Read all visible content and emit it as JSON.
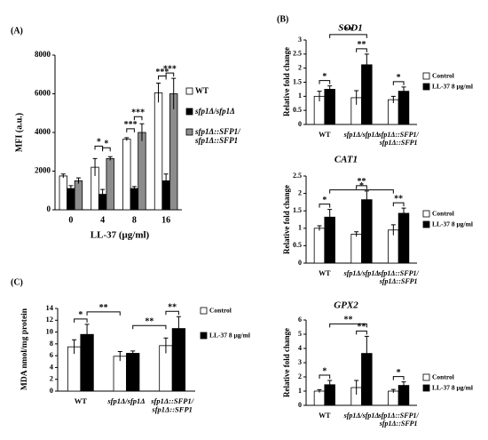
{
  "chart_data": [
    {
      "type": "bar",
      "panel": "(A)",
      "xlabel": "LL-37 (μg/ml)",
      "ylabel": "MFI (a.u.)",
      "categories": [
        "0",
        "4",
        "8",
        "16"
      ],
      "series": [
        {
          "name": "WT",
          "color": "#ffffff",
          "values": [
            1750,
            2200,
            3650,
            6050
          ],
          "errors": [
            100,
            450,
            80,
            500
          ]
        },
        {
          "name": "sfp1Δ/sfp1Δ",
          "color": "#000000",
          "values": [
            1100,
            800,
            1100,
            1500
          ],
          "errors": [
            150,
            250,
            100,
            350
          ]
        },
        {
          "name": "sfp1Δ::SFP1/sfp1Δ::SFP1",
          "color": "#8c8c8c",
          "values": [
            1500,
            2650,
            4000,
            6000
          ],
          "errors": [
            150,
            100,
            450,
            800
          ]
        }
      ],
      "ylim": [
        0,
        8000
      ],
      "yticks": [
        0,
        2000,
        4000,
        6000,
        8000
      ],
      "annotations": [
        "*",
        "*",
        "***",
        "***",
        "***",
        "***"
      ]
    },
    {
      "type": "bar",
      "panel": "(B)",
      "title": "SOD1",
      "ylabel": "Relative fold change",
      "categories": [
        "WT",
        "sfp1Δ/sfp1Δ",
        "sfp1Δ::SFP1/sfp1Δ::SFP1"
      ],
      "series": [
        {
          "name": "Control",
          "color": "#ffffff",
          "values": [
            1.0,
            0.95,
            0.88
          ],
          "errors": [
            0.18,
            0.25,
            0.12
          ]
        },
        {
          "name": "LL-37  8 μg/ml",
          "color": "#000000",
          "values": [
            1.25,
            2.12,
            1.18
          ],
          "errors": [
            0.12,
            0.38,
            0.15
          ]
        }
      ],
      "ylim": [
        0,
        3
      ],
      "yticks": [
        0,
        0.5,
        1,
        1.5,
        2,
        2.5,
        3
      ],
      "annotations": [
        "*",
        "**",
        "**",
        "*"
      ]
    },
    {
      "type": "bar",
      "title": "CAT1",
      "ylabel": "Relative fold change",
      "categories": [
        "WT",
        "sfp1Δ/sfp1Δ",
        "sfp1Δ::SFP1/sfp1Δ::SFP1"
      ],
      "series": [
        {
          "name": "Control",
          "color": "#ffffff",
          "values": [
            1.0,
            0.83,
            0.95
          ],
          "errors": [
            0.07,
            0.07,
            0.15
          ]
        },
        {
          "name": "LL-37  8 μg/ml",
          "color": "#000000",
          "values": [
            1.32,
            1.82,
            1.43
          ],
          "errors": [
            0.22,
            0.25,
            0.15
          ]
        }
      ],
      "ylim": [
        0,
        2.5
      ],
      "yticks": [
        0,
        0.5,
        1,
        1.5,
        2,
        2.5
      ],
      "annotations": [
        "*",
        "*",
        "**",
        "**"
      ]
    },
    {
      "type": "bar",
      "title": "GPX2",
      "ylabel": "Relative fold change",
      "categories": [
        "WT",
        "sfp1Δ/sfp1Δ",
        "sfp1Δ::SFP1/sfp1Δ::SFP1"
      ],
      "series": [
        {
          "name": "Control",
          "color": "#ffffff",
          "values": [
            1.0,
            1.25,
            1.0
          ],
          "errors": [
            0.1,
            0.5,
            0.12
          ]
        },
        {
          "name": "LL-37  8 μg/ml",
          "color": "#000000",
          "values": [
            1.45,
            3.65,
            1.4
          ],
          "errors": [
            0.3,
            1.2,
            0.25
          ]
        }
      ],
      "ylim": [
        0,
        6
      ],
      "yticks": [
        0,
        1,
        2,
        3,
        4,
        5,
        6
      ],
      "annotations": [
        "*",
        "**",
        "**",
        "*"
      ]
    },
    {
      "type": "bar",
      "panel": "(C)",
      "ylabel": "MDA nmol/mg protein",
      "categories": [
        "WT",
        "sfp1Δ/sfp1Δ",
        "sfp1Δ::SFP1/sfp1Δ::SFP1"
      ],
      "series": [
        {
          "name": "Control",
          "color": "#ffffff",
          "values": [
            7.5,
            5.9,
            7.7
          ],
          "errors": [
            1.2,
            0.8,
            1.3
          ]
        },
        {
          "name": "LL-37  8 μg/ml",
          "color": "#000000",
          "values": [
            9.6,
            6.4,
            10.6
          ],
          "errors": [
            1.7,
            0.4,
            2.0
          ]
        }
      ],
      "ylim": [
        0,
        14
      ],
      "yticks": [
        0,
        2,
        4,
        6,
        8,
        10,
        12,
        14
      ],
      "annotations": [
        "*",
        "**",
        "**",
        "**"
      ]
    }
  ]
}
